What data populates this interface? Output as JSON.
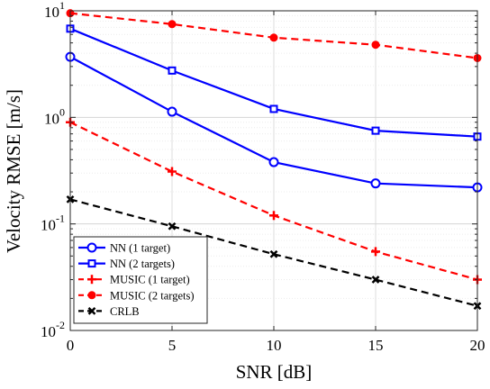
{
  "chart_data": {
    "type": "line",
    "title": "",
    "xlabel": "SNR [dB]",
    "ylabel": "Velocity RMSE [m/s]",
    "x": [
      0,
      5,
      10,
      15,
      20
    ],
    "xlim": [
      0,
      20
    ],
    "ylim": [
      0.01,
      10
    ],
    "yscale": "log",
    "grid": true,
    "xticks": [
      "0",
      "5",
      "10",
      "15",
      "20"
    ],
    "yticks": [
      {
        "base": "10",
        "exp": "-2",
        "value": 0.01
      },
      {
        "base": "10",
        "exp": "-1",
        "value": 0.1
      },
      {
        "base": "10",
        "exp": "0",
        "value": 1
      },
      {
        "base": "10",
        "exp": "1",
        "value": 10
      }
    ],
    "legend_position": "bottom-left",
    "series": [
      {
        "name": "NN (1 target)",
        "values": [
          3.7,
          1.13,
          0.38,
          0.24,
          0.22
        ],
        "color": "#0000ff",
        "dash": "solid",
        "marker": "circle"
      },
      {
        "name": "NN (2 targets)",
        "values": [
          6.8,
          2.75,
          1.2,
          0.75,
          0.66
        ],
        "color": "#0000ff",
        "dash": "solid",
        "marker": "square"
      },
      {
        "name": "MUSIC (1 target)",
        "values": [
          0.9,
          0.31,
          0.12,
          0.055,
          0.03
        ],
        "color": "#ff0000",
        "dash": "dashed",
        "marker": "plus"
      },
      {
        "name": "MUSIC (2 targets)",
        "values": [
          9.5,
          7.5,
          5.6,
          4.8,
          3.6
        ],
        "color": "#ff0000",
        "dash": "dashed",
        "marker": "dot"
      },
      {
        "name": "CRLB",
        "values": [
          0.17,
          0.095,
          0.052,
          0.03,
          0.017
        ],
        "color": "#000000",
        "dash": "dashed",
        "marker": "x"
      }
    ]
  }
}
